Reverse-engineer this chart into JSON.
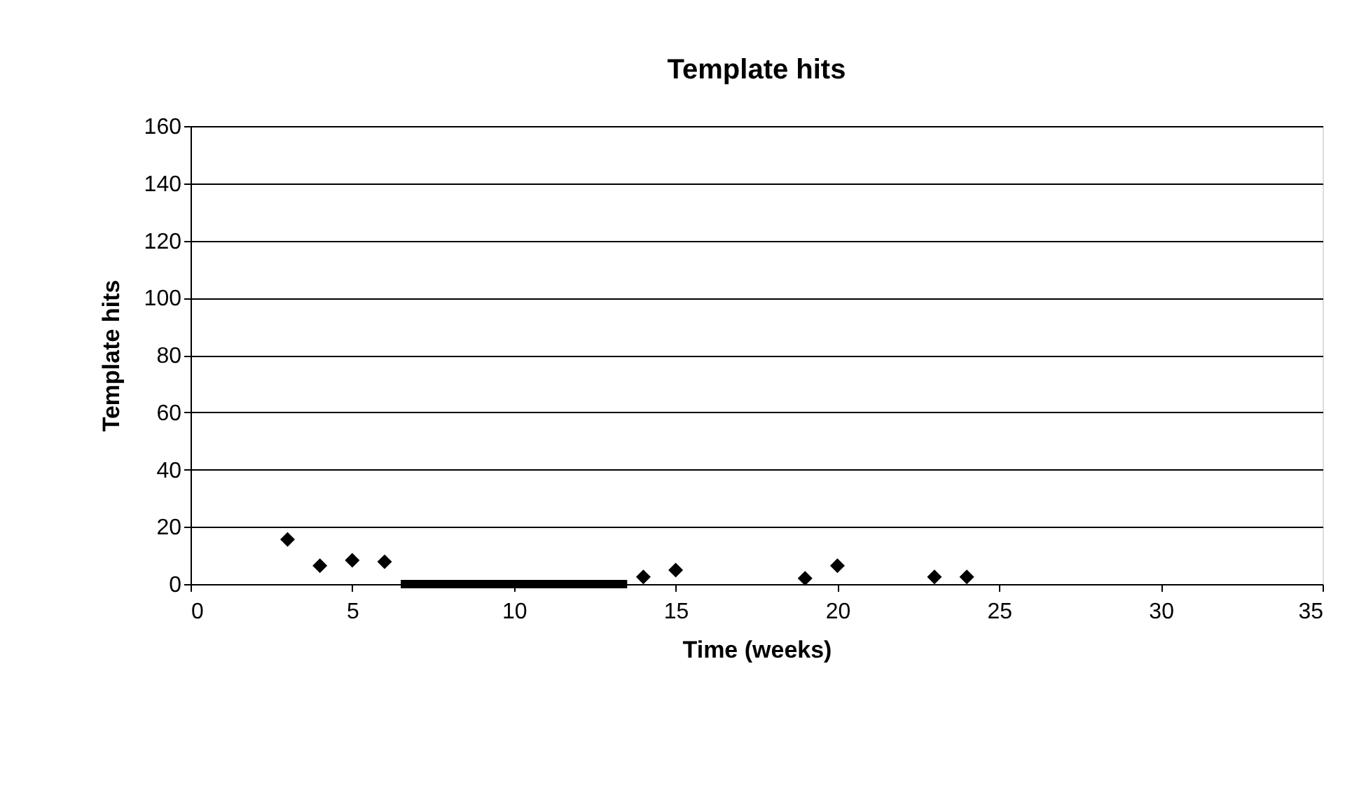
{
  "chart_data": {
    "type": "scatter",
    "title": "Template hits",
    "xlabel": "Time (weeks)",
    "ylabel": "Template hits",
    "series": [
      {
        "color": "#000000",
        "x": [
          3,
          4,
          5,
          6,
          14,
          15,
          19,
          20,
          23,
          24
        ],
        "values": [
          15.6,
          6.4,
          8.3,
          7.8,
          2.5,
          4.9,
          2,
          6.4,
          2.5,
          2.5
        ],
        "marker": "diamond"
      },
      {
        "type": "line",
        "color": "#000000",
        "x": [
          6.5,
          13.5
        ],
        "values": [
          0,
          0
        ],
        "line_style": "solid"
      }
    ],
    "xlim": [
      0,
      35
    ],
    "xticks": [
      0,
      5,
      10,
      15,
      20,
      25,
      30,
      35
    ],
    "ylim": [
      0,
      160
    ],
    "yticks": [
      0,
      20,
      40,
      60,
      80,
      100,
      120,
      140,
      160
    ],
    "grid": "y"
  }
}
